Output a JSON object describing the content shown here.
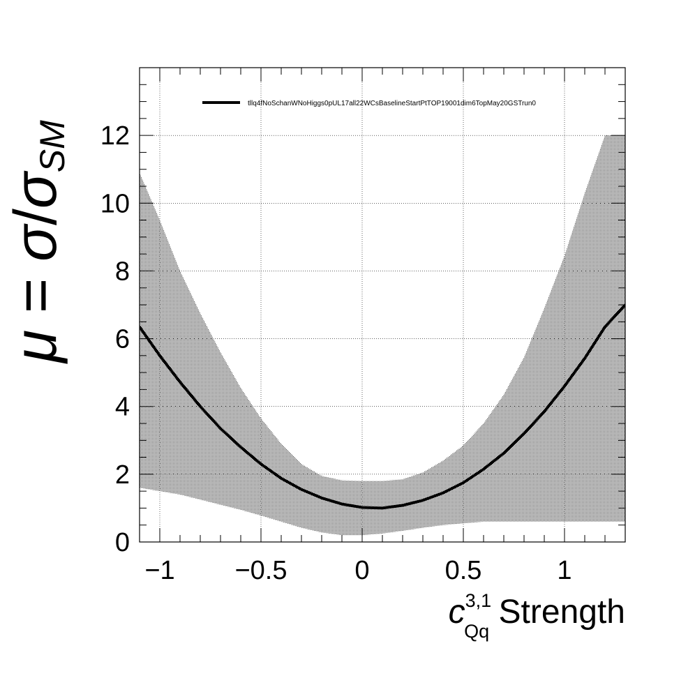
{
  "chart_data": {
    "type": "line",
    "title": "",
    "xlabel": {
      "base": "c",
      "sup": "3,1",
      "sub": "Qq",
      "suffix": " Strength"
    },
    "ylabel": {
      "mu": "μ",
      "eq": " = ",
      "sigma": "σ",
      "slash": "/",
      "sigma_sm": "σ",
      "sm": "SM"
    },
    "xlim": [
      -1.1,
      1.3
    ],
    "ylim": [
      0,
      14
    ],
    "grid": true,
    "legend_position": "top-center",
    "x_ticks": [
      {
        "value": -1,
        "label": "−1"
      },
      {
        "value": -0.5,
        "label": "−0.5"
      },
      {
        "value": 0,
        "label": "0"
      },
      {
        "value": 0.5,
        "label": "0.5"
      },
      {
        "value": 1,
        "label": "1"
      }
    ],
    "y_ticks": [
      {
        "value": 0,
        "label": "0"
      },
      {
        "value": 2,
        "label": "2"
      },
      {
        "value": 4,
        "label": "4"
      },
      {
        "value": 6,
        "label": "6"
      },
      {
        "value": 8,
        "label": "8"
      },
      {
        "value": 10,
        "label": "10"
      },
      {
        "value": 12,
        "label": "12"
      }
    ],
    "series": [
      {
        "name": "tllq4fNoSchanWNoHiggs0pUL17all22WCsBaselineStartPtTOP19001dim6TopMay20GSTrun0",
        "color": "#000000",
        "x": [
          -1.1,
          -1.0,
          -0.9,
          -0.8,
          -0.7,
          -0.6,
          -0.5,
          -0.4,
          -0.3,
          -0.2,
          -0.1,
          0.0,
          0.1,
          0.2,
          0.3,
          0.4,
          0.5,
          0.6,
          0.7,
          0.8,
          0.9,
          1.0,
          1.1,
          1.2,
          1.3
        ],
        "y": [
          6.35,
          5.5,
          4.72,
          4.0,
          3.35,
          2.8,
          2.3,
          1.88,
          1.55,
          1.3,
          1.12,
          1.02,
          1.0,
          1.08,
          1.23,
          1.45,
          1.75,
          2.15,
          2.62,
          3.2,
          3.85,
          4.6,
          5.42,
          6.35,
          7.0
        ],
        "band_upper": [
          10.9,
          9.5,
          8.0,
          6.75,
          5.6,
          4.55,
          3.65,
          2.9,
          2.3,
          1.95,
          1.82,
          1.8,
          1.8,
          1.85,
          2.05,
          2.4,
          2.85,
          3.5,
          4.35,
          5.45,
          6.9,
          8.45,
          10.3,
          12.0,
          12.0
        ],
        "band_lower": [
          1.6,
          1.5,
          1.4,
          1.25,
          1.1,
          0.95,
          0.78,
          0.6,
          0.42,
          0.28,
          0.2,
          0.2,
          0.25,
          0.33,
          0.42,
          0.5,
          0.55,
          0.6,
          0.6,
          0.6,
          0.6,
          0.6,
          0.6,
          0.6,
          0.6
        ],
        "band_color": "#9a9a9a"
      }
    ]
  }
}
